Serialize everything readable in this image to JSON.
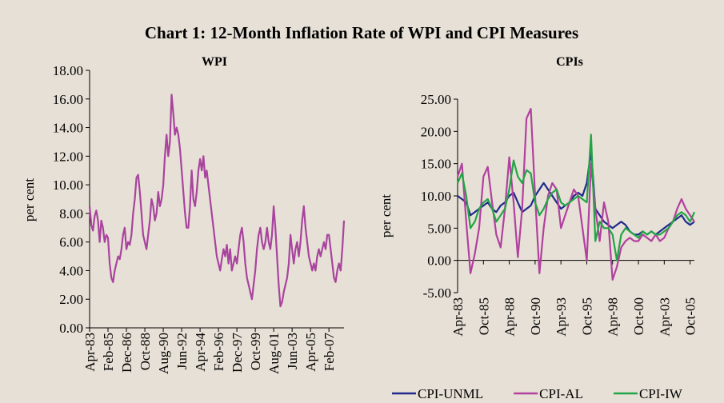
{
  "title": "Chart 1: 12-Month Inflation Rate  of WPI and CPI Measures",
  "chart_data": [
    {
      "type": "line",
      "title": "WPI",
      "y_label": "per cent",
      "color": "#a8439e",
      "categories": [
        "Apr-83",
        null,
        null,
        null,
        null,
        null,
        null,
        null,
        null,
        null,
        null,
        "Feb-85",
        null,
        null,
        null,
        null,
        null,
        null,
        null,
        null,
        null,
        null,
        "Dec-86",
        null,
        null,
        null,
        null,
        null,
        null,
        null,
        null,
        null,
        null,
        "Oct-88",
        null,
        null,
        null,
        null,
        null,
        null,
        null,
        null,
        null,
        null,
        "Aug-90",
        null,
        null,
        null,
        null,
        null,
        null,
        null,
        null,
        null,
        null,
        "Jun-92",
        null,
        null,
        null,
        null,
        null,
        null,
        null,
        null,
        null,
        null,
        "Apr-94",
        null,
        null,
        null,
        null,
        null,
        null,
        null,
        null,
        null,
        null,
        "Feb-96",
        null,
        null,
        null,
        null,
        null,
        null,
        null,
        null,
        null,
        null,
        "Dec-97",
        null,
        null,
        null,
        null,
        null,
        null,
        null,
        null,
        null,
        null,
        "Oct-99",
        null,
        null,
        null,
        null,
        null,
        null,
        null,
        null,
        null,
        null,
        "Aug-01",
        null,
        null,
        null,
        null,
        null,
        null,
        null,
        null,
        null,
        null,
        "Jun-03",
        null,
        null,
        null,
        null,
        null,
        null,
        null,
        null,
        null,
        null,
        "Apr-05",
        null,
        null,
        null,
        null,
        null,
        null,
        null,
        null,
        null,
        null,
        "Feb-07",
        null,
        null,
        null,
        null,
        null,
        null,
        null,
        null,
        null
      ],
      "values": [
        8.5,
        7.2,
        6.8,
        7.8,
        8.2,
        7.5,
        6.0,
        7.5,
        7.0,
        6.0,
        6.5,
        6.3,
        4.5,
        3.5,
        3.2,
        4.0,
        4.5,
        5.0,
        4.8,
        5.5,
        6.5,
        7.0,
        5.5,
        6.0,
        5.8,
        6.5,
        8.0,
        9.0,
        10.5,
        10.7,
        9.5,
        8.0,
        6.5,
        6.0,
        5.5,
        6.5,
        7.5,
        9.0,
        8.5,
        7.5,
        8.0,
        9.5,
        8.5,
        9.0,
        10.0,
        12.0,
        13.5,
        12.0,
        13.0,
        16.3,
        15.0,
        13.5,
        14.0,
        13.5,
        12.5,
        11.0,
        9.5,
        8.0,
        7.0,
        7.0,
        8.5,
        11.0,
        9.0,
        8.5,
        9.5,
        11.0,
        11.8,
        11.0,
        12.0,
        10.5,
        11.0,
        10.0,
        9.0,
        8.0,
        7.0,
        6.0,
        5.0,
        4.5,
        4.0,
        4.8,
        5.5,
        5.0,
        5.8,
        4.5,
        5.5,
        4.0,
        4.5,
        5.0,
        4.5,
        5.5,
        6.5,
        7.0,
        6.0,
        4.5,
        3.5,
        3.0,
        2.5,
        2.0,
        3.0,
        4.0,
        5.5,
        6.5,
        7.0,
        6.0,
        5.5,
        6.0,
        7.0,
        6.0,
        5.5,
        6.5,
        8.5,
        7.0,
        5.0,
        3.0,
        1.5,
        1.8,
        2.5,
        3.0,
        3.5,
        4.5,
        6.5,
        5.5,
        4.5,
        5.5,
        6.0,
        5.0,
        6.0,
        7.5,
        8.5,
        7.0,
        6.0,
        5.0,
        4.5,
        4.0,
        4.5,
        4.0,
        5.0,
        5.5,
        5.0,
        5.5,
        6.0,
        5.5,
        6.5,
        6.5,
        5.5,
        4.5,
        3.5,
        3.2,
        4.0,
        4.5,
        4.0,
        5.5,
        7.5
      ],
      "ylim": [
        0,
        18
      ],
      "yticks": [
        {
          "value": 0,
          "label": "0.00"
        },
        {
          "value": 2,
          "label": "2.00"
        },
        {
          "value": 4,
          "label": "4.00"
        },
        {
          "value": 6,
          "label": "6.00"
        },
        {
          "value": 8,
          "label": "8.00"
        },
        {
          "value": 10,
          "label": "10.00"
        },
        {
          "value": 12,
          "label": "12.00"
        },
        {
          "value": 14,
          "label": "14.00"
        },
        {
          "value": 16,
          "label": "16.00"
        },
        {
          "value": 18,
          "label": "18.00"
        }
      ]
    },
    {
      "type": "line",
      "title": "CPIs",
      "y_label": "per cent",
      "legend": "bottom",
      "categories": [
        "Apr-83",
        null,
        null,
        null,
        null,
        null,
        "Oct-85",
        null,
        null,
        null,
        null,
        null,
        "Apr-88",
        null,
        null,
        null,
        null,
        null,
        "Oct-90",
        null,
        null,
        null,
        null,
        null,
        "Apr-93",
        null,
        null,
        null,
        null,
        null,
        "Oct-95",
        null,
        null,
        null,
        null,
        null,
        "Apr-98",
        null,
        null,
        null,
        null,
        null,
        "Oct-00",
        null,
        null,
        null,
        null,
        null,
        "Apr-03",
        null,
        null,
        null,
        null,
        null,
        "Oct-05",
        null
      ],
      "series": [
        {
          "name": "CPI-UNML",
          "color": "#1f2a8c",
          "values": [
            10,
            9.5,
            9,
            7,
            7.5,
            8,
            8.5,
            9,
            8,
            7.5,
            8.5,
            9,
            10,
            10.5,
            9,
            7.5,
            8,
            8.5,
            10,
            11,
            12,
            11,
            10,
            9,
            8,
            8.5,
            9,
            10,
            10.5,
            10,
            12,
            17,
            8,
            7,
            6,
            5.5,
            5,
            5.5,
            6,
            5.5,
            4.5,
            4,
            4,
            4.5,
            4,
            4.5,
            4,
            4.5,
            5,
            5.5,
            6,
            6.5,
            7,
            6,
            5.5,
            6
          ]
        },
        {
          "name": "CPI-AL",
          "color": "#b1409f",
          "values": [
            13,
            15,
            6,
            -2,
            1,
            5,
            13,
            14.5,
            9,
            4,
            2,
            8,
            16,
            9,
            0.5,
            8,
            22,
            23.5,
            10,
            -2,
            5,
            10,
            12,
            11,
            5,
            7,
            9,
            11,
            10,
            5,
            0,
            15,
            8,
            3,
            9,
            6,
            -3,
            -1,
            2,
            3,
            3.5,
            3,
            3,
            4,
            3.5,
            3,
            4,
            3,
            3.5,
            5,
            6,
            8,
            9.5,
            8,
            7,
            6
          ]
        },
        {
          "name": "CPI-IW",
          "color": "#22a545",
          "values": [
            12,
            13.5,
            10,
            5,
            6,
            8,
            9,
            9.5,
            8,
            6,
            7,
            8,
            11,
            15.5,
            13,
            12,
            14,
            13.5,
            9,
            7,
            8,
            9.5,
            10.5,
            11,
            9,
            8.5,
            9,
            9.5,
            10,
            9.5,
            9,
            19.5,
            3,
            6,
            5,
            5,
            4,
            0,
            4,
            5,
            4.5,
            4,
            3.5,
            4.5,
            4,
            4.5,
            4,
            4,
            4.5,
            5,
            6,
            7,
            7.5,
            7,
            6,
            7.5
          ]
        }
      ],
      "ylim": [
        -5,
        25
      ],
      "yticks": [
        {
          "value": -5,
          "label": "-5.00"
        },
        {
          "value": 0,
          "label": "0.00"
        },
        {
          "value": 5,
          "label": "5.00"
        },
        {
          "value": 10,
          "label": "10.00"
        },
        {
          "value": 15,
          "label": "15.00"
        },
        {
          "value": 20,
          "label": "20.00"
        },
        {
          "value": 25,
          "label": "25.00"
        }
      ]
    }
  ]
}
